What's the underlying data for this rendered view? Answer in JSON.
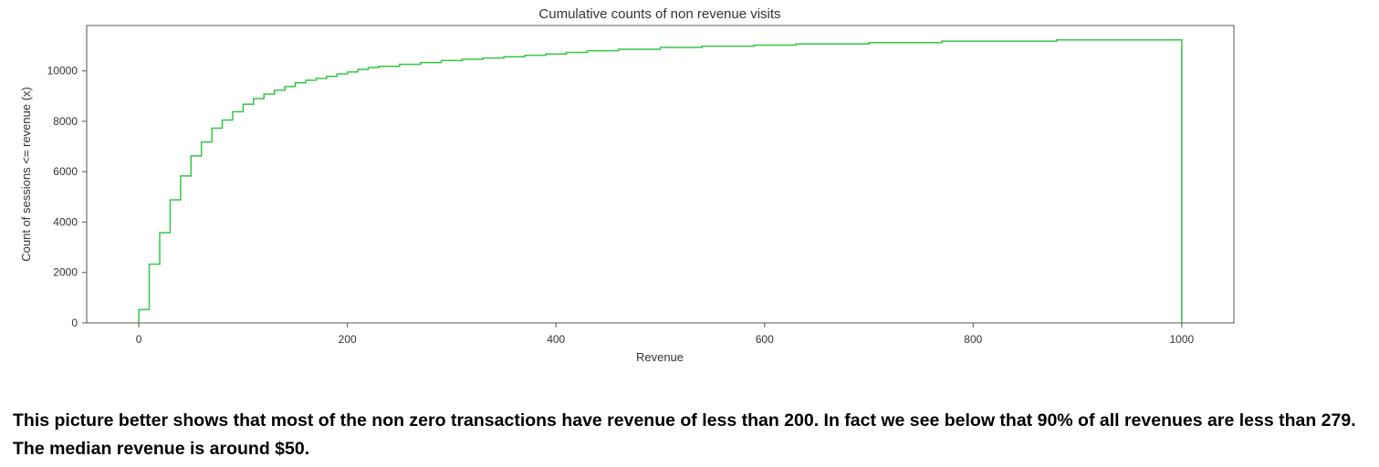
{
  "chart_data": {
    "type": "line",
    "style": "step",
    "title": "Cumulative counts of non revenue visits",
    "xlabel": "Revenue",
    "ylabel": "Count of sessions <= revenue (x)",
    "xlim": [
      -50,
      1050
    ],
    "ylim": [
      0,
      11800
    ],
    "xticks": [
      0,
      200,
      400,
      600,
      800,
      1000
    ],
    "yticks": [
      0,
      2000,
      4000,
      6000,
      8000,
      10000
    ],
    "grid": false,
    "color": "#35c648",
    "x": [
      0,
      10,
      20,
      30,
      40,
      50,
      60,
      70,
      80,
      90,
      100,
      110,
      120,
      130,
      140,
      150,
      160,
      170,
      180,
      190,
      200,
      210,
      220,
      230,
      250,
      270,
      290,
      310,
      330,
      350,
      370,
      390,
      410,
      430,
      460,
      500,
      540,
      590,
      630,
      700,
      770,
      880,
      1000
    ],
    "y": [
      530,
      2330,
      3580,
      4880,
      5830,
      6630,
      7180,
      7730,
      8050,
      8380,
      8680,
      8900,
      9080,
      9230,
      9380,
      9530,
      9630,
      9700,
      9780,
      9880,
      9960,
      10060,
      10130,
      10180,
      10260,
      10330,
      10410,
      10460,
      10510,
      10560,
      10620,
      10670,
      10730,
      10800,
      10860,
      10930,
      10980,
      11020,
      11070,
      11120,
      11180,
      11230,
      11230
    ]
  },
  "caption": {
    "text": "This picture better shows that most of the non zero transactions have revenue of less than 200. In fact we see below that 90% of all revenues are less than 279. The median revenue is around $50."
  }
}
